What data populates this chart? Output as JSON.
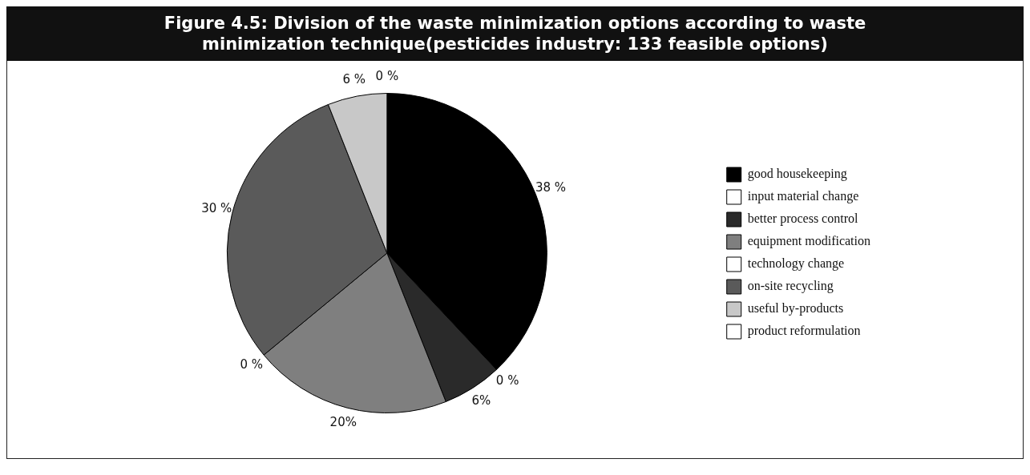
{
  "chart_data": {
    "type": "pie",
    "title": "Figure 4.5: Division of the waste minimization options according to waste minimization technique(pesticides industry: 133 feasible options)",
    "categories": [
      "good housekeeping",
      "input material change",
      "better process control",
      "equipment modification",
      "technology change",
      "on-site recycling",
      "useful by-products",
      "product reformulation"
    ],
    "values": [
      38,
      0,
      6,
      20,
      0,
      30,
      6,
      0
    ],
    "value_labels": [
      "38 %",
      "0 %",
      "6%",
      "20%",
      "0 %",
      "30 %",
      "6 %",
      "0 %"
    ],
    "colors": [
      "#000000",
      "#ffffff",
      "#2a2a2a",
      "#7f7f7f",
      "#ffffff",
      "#5a5a5a",
      "#c8c8c8",
      "#ffffff"
    ],
    "legend": "right"
  }
}
